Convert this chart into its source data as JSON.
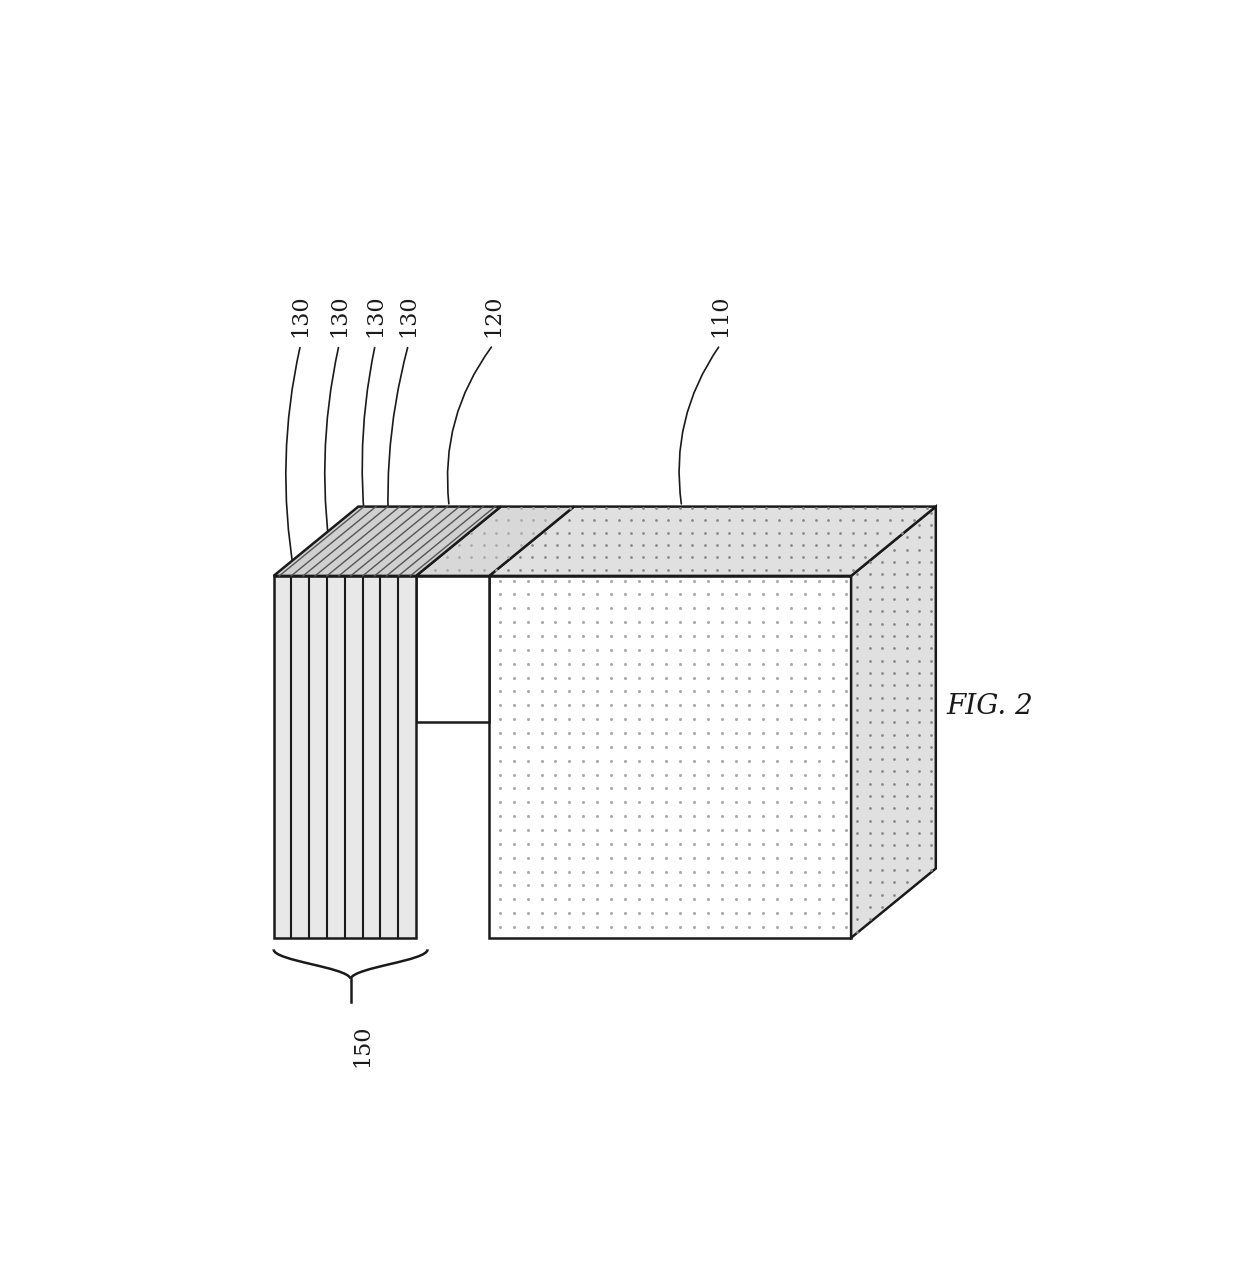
{
  "background_color": "#ffffff",
  "fig_width": 12.4,
  "fig_height": 12.7,
  "dpi": 100,
  "fig_label": "FIG. 2",
  "label_110": "110",
  "label_120": "120",
  "label_130": "130",
  "label_150": "150",
  "edge_color": "#1a1a1a",
  "stipple_color": "#aaaaaa",
  "stripe_bg_color": "#d8d8d8",
  "white_color": "#ffffff",
  "gate_top_color": "#cccccc"
}
